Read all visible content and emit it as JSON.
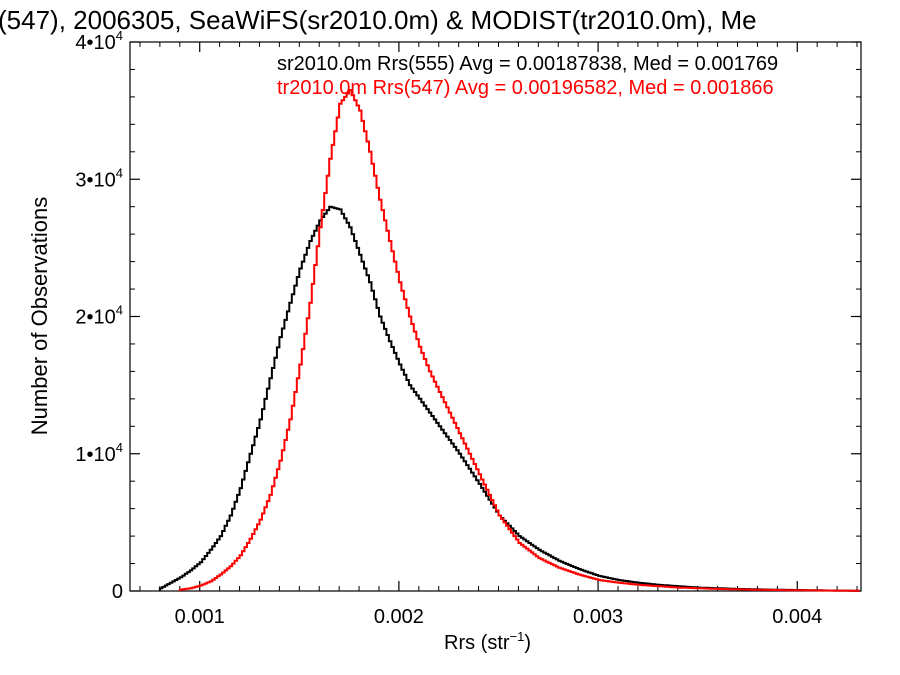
{
  "chart_data": {
    "type": "line",
    "title": "(547), 2006305, SeaWiFS(sr2010.0m) & MODIST(tr2010.0m), Me",
    "xlabel": "Rrs (str",
    "xlabel_sup": "−1",
    "xlabel_tail": ")",
    "ylabel": "Number of Observations",
    "xlim": [
      0.00065,
      0.00432
    ],
    "ylim": [
      0,
      40000
    ],
    "x_ticks": [
      {
        "value": 0.001,
        "label": "0.001"
      },
      {
        "value": 0.002,
        "label": "0.002"
      },
      {
        "value": 0.003,
        "label": "0.003"
      },
      {
        "value": 0.004,
        "label": "0.004"
      }
    ],
    "y_ticks": [
      {
        "value": 0,
        "label": "0",
        "sup": ""
      },
      {
        "value": 10000,
        "label": "1•10",
        "sup": "4"
      },
      {
        "value": 20000,
        "label": "2•10",
        "sup": "4"
      },
      {
        "value": 30000,
        "label": "3•10",
        "sup": "4"
      },
      {
        "value": 40000,
        "label": "4•10",
        "sup": "4"
      }
    ],
    "legend": [
      {
        "text": "sr2010.0m Rrs(555) Avg = 0.00187838, Med = 0.001769",
        "color": "#000000"
      },
      {
        "text": "tr2010.0m Rrs(547) Avg = 0.00196582, Med = 0.001866",
        "color": "#ff0000"
      }
    ],
    "series": [
      {
        "color": "#000000",
        "x": [
          0.0008,
          0.00085,
          0.0009,
          0.00095,
          0.001,
          0.00105,
          0.0011,
          0.00115,
          0.0012,
          0.00125,
          0.0013,
          0.00135,
          0.0014,
          0.00145,
          0.0015,
          0.00155,
          0.0016,
          0.00165,
          0.0017,
          0.00175,
          0.0018,
          0.00185,
          0.0019,
          0.00195,
          0.002,
          0.00205,
          0.0021,
          0.00215,
          0.0022,
          0.0023,
          0.0024,
          0.0025,
          0.0026,
          0.0027,
          0.0028,
          0.0029,
          0.003,
          0.0031,
          0.0032,
          0.0033,
          0.0034,
          0.0035,
          0.0036,
          0.0037,
          0.0038,
          0.0039,
          0.004,
          0.0041,
          0.0042,
          0.00432
        ],
        "y": [
          200,
          600,
          1000,
          1500,
          2100,
          3000,
          4000,
          5500,
          7500,
          10000,
          12500,
          15500,
          18500,
          21000,
          23500,
          25500,
          27000,
          28000,
          27800,
          26500,
          24500,
          22500,
          20000,
          18200,
          16500,
          15000,
          14000,
          13000,
          12000,
          10000,
          7800,
          5500,
          4000,
          3000,
          2200,
          1600,
          1100,
          800,
          600,
          450,
          350,
          250,
          200,
          150,
          120,
          90,
          70,
          50,
          30,
          20
        ]
      },
      {
        "color": "#ff0000",
        "x": [
          0.0009,
          0.00095,
          0.001,
          0.00105,
          0.0011,
          0.00115,
          0.0012,
          0.00125,
          0.0013,
          0.00135,
          0.0014,
          0.00145,
          0.0015,
          0.00155,
          0.0016,
          0.00165,
          0.0017,
          0.00175,
          0.0018,
          0.00185,
          0.0019,
          0.00195,
          0.002,
          0.00205,
          0.0021,
          0.00215,
          0.0022,
          0.0023,
          0.0024,
          0.0025,
          0.0026,
          0.0027,
          0.0028,
          0.0029,
          0.003,
          0.0031,
          0.0032,
          0.0033,
          0.0034,
          0.0035,
          0.0036,
          0.0037,
          0.0038,
          0.0039,
          0.004,
          0.0041,
          0.0042,
          0.00432
        ],
        "y": [
          100,
          200,
          400,
          700,
          1200,
          1800,
          2600,
          3800,
          5200,
          7000,
          9500,
          12500,
          16500,
          21000,
          26500,
          31500,
          35500,
          36500,
          35000,
          32000,
          28500,
          25500,
          22500,
          20000,
          17800,
          16000,
          14500,
          11500,
          8500,
          5500,
          3500,
          2400,
          1700,
          1200,
          800,
          600,
          450,
          350,
          250,
          200,
          150,
          120,
          90,
          70,
          50,
          40,
          30,
          20
        ]
      }
    ]
  }
}
